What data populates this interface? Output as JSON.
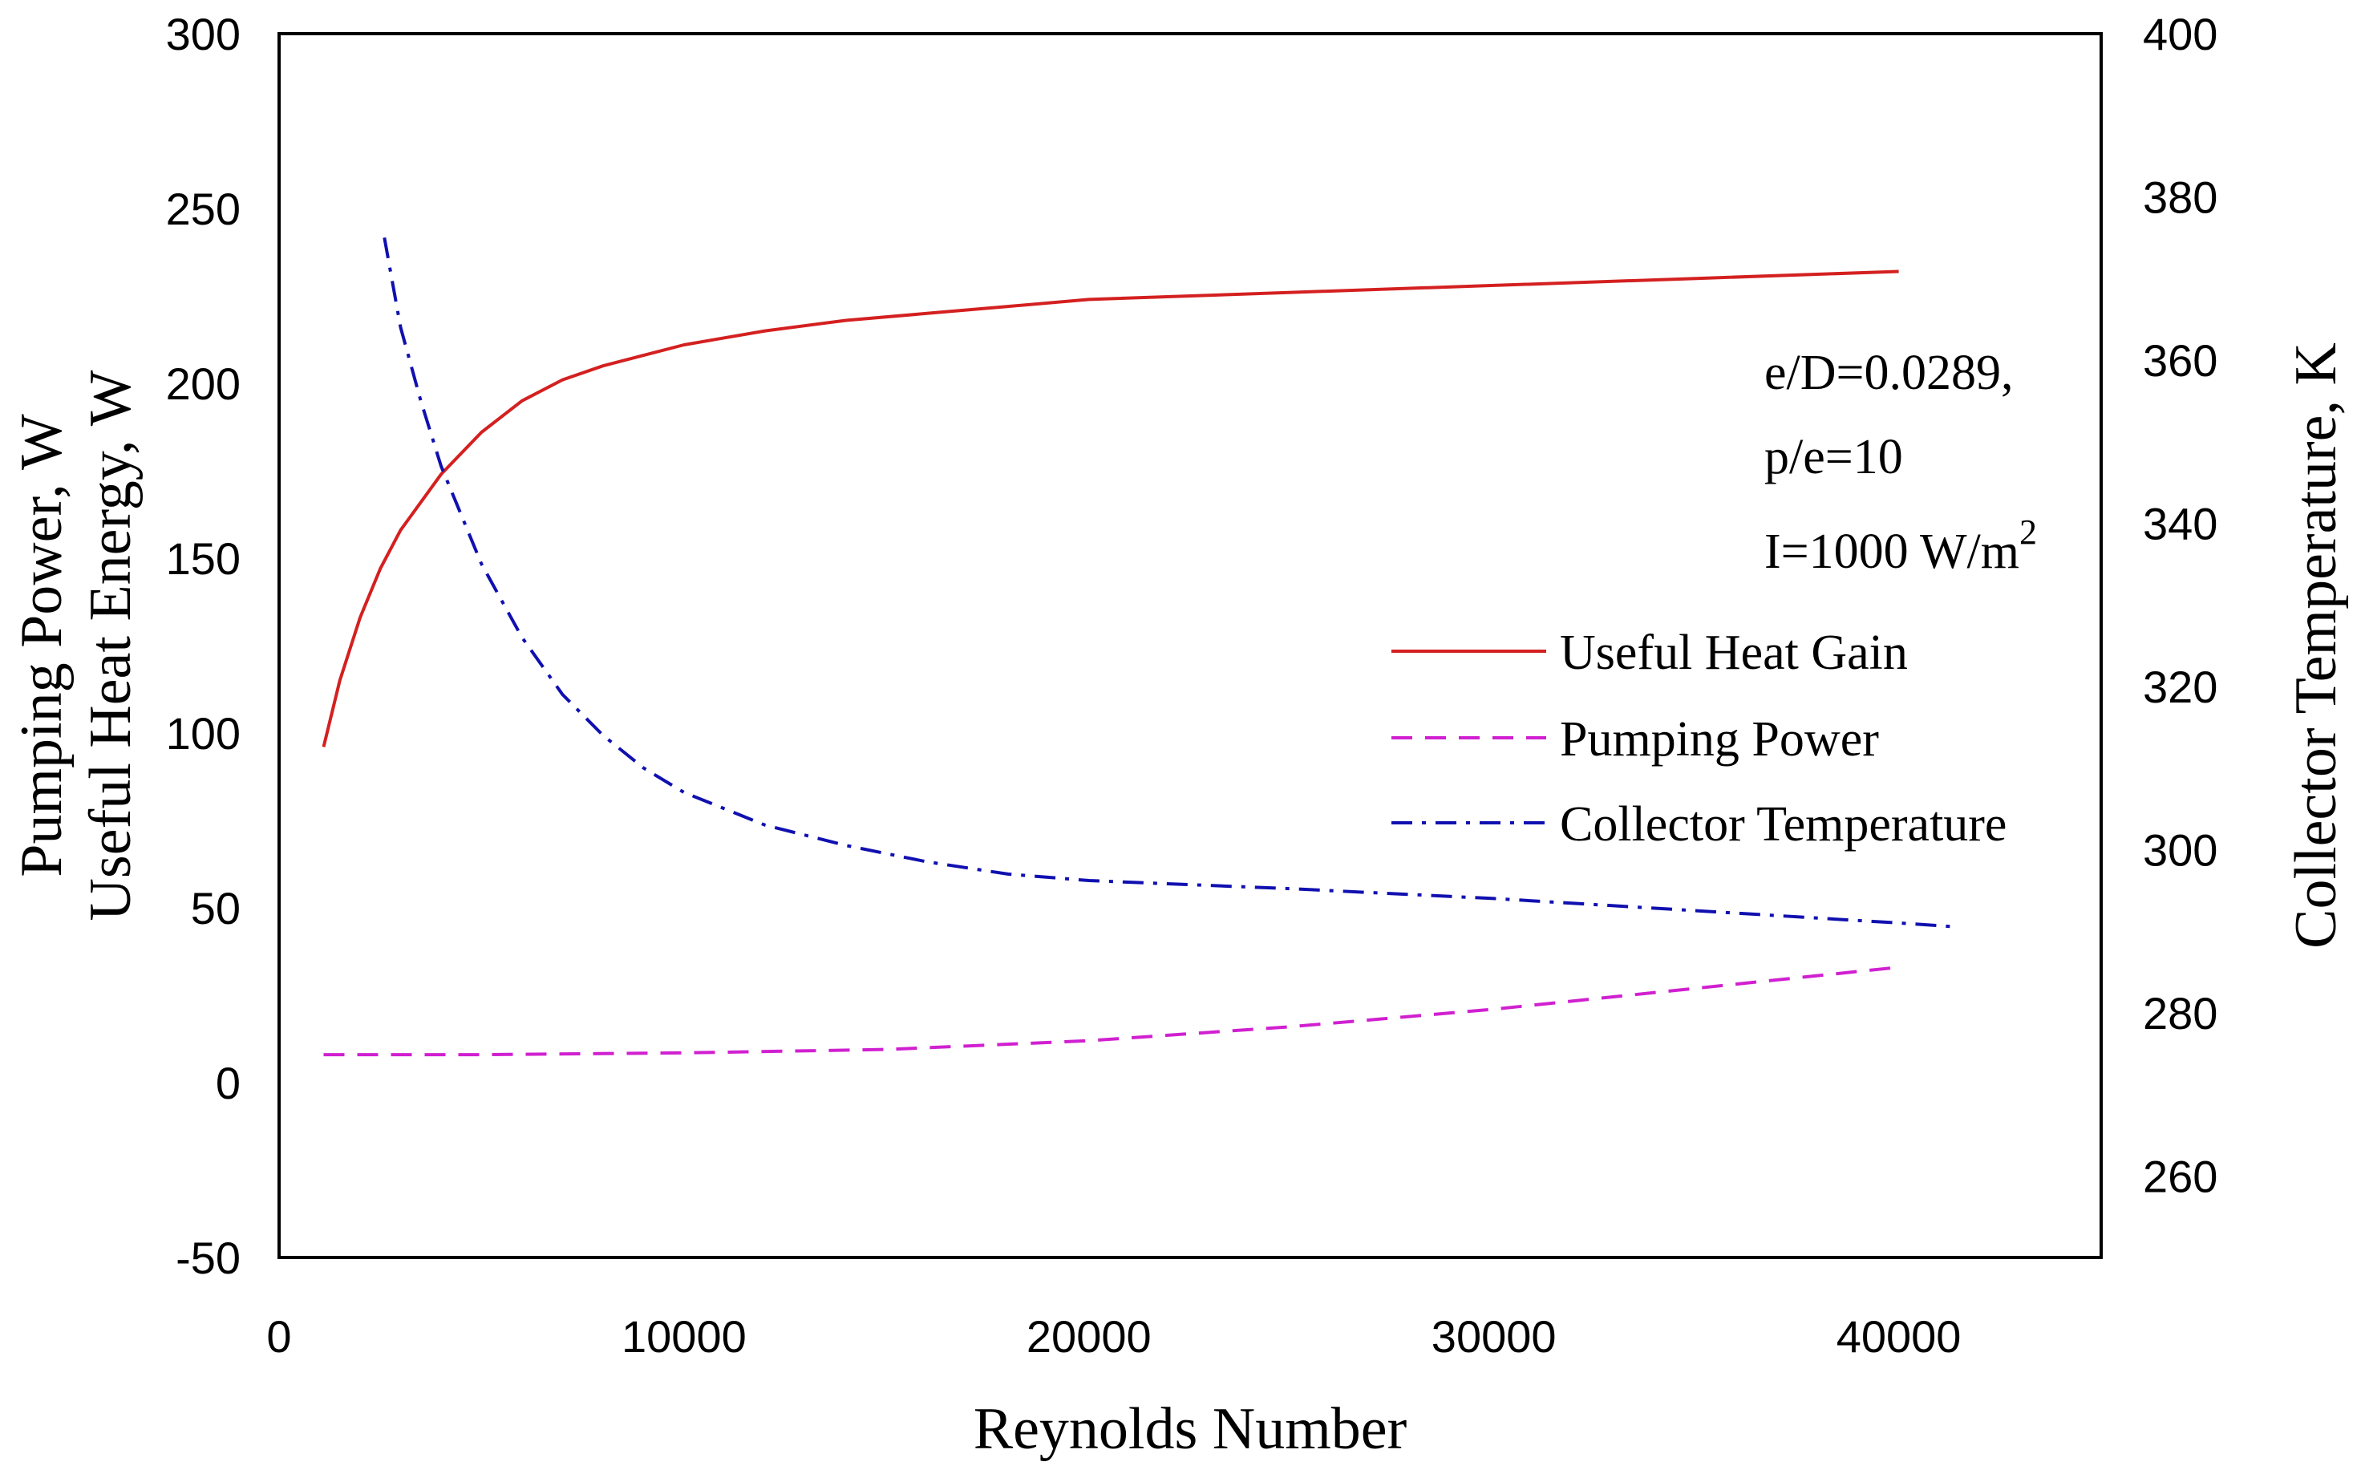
{
  "chart_data": {
    "type": "line",
    "title": "",
    "xlabel": "Reynolds Number",
    "ylabel_left_line1": "Pumping Power, W",
    "ylabel_left_line2": "Useful Heat Energy, W",
    "ylabel_right": "Collector Temperature, K",
    "xlim": [
      0,
      45000
    ],
    "ylim_left": [
      -50,
      300
    ],
    "ylim_right": [
      250,
      400
    ],
    "x_ticks": [
      "0",
      "10000",
      "20000",
      "30000",
      "40000"
    ],
    "x_tick_values": [
      0,
      10000,
      20000,
      30000,
      40000
    ],
    "y_left_ticks": [
      "-50",
      "0",
      "50",
      "100",
      "150",
      "200",
      "250",
      "300"
    ],
    "y_left_tick_values": [
      -50,
      0,
      50,
      100,
      150,
      200,
      250,
      300
    ],
    "y_right_ticks": [
      "260",
      "280",
      "300",
      "320",
      "340",
      "360",
      "380",
      "400"
    ],
    "y_right_tick_values": [
      260,
      280,
      300,
      320,
      340,
      360,
      380,
      400
    ],
    "annotations": [
      "e/D=0.0289,",
      "p/e=10",
      "I=1000 W/m",
      "2"
    ],
    "legend_position": "right",
    "series": [
      {
        "name": "Useful Heat Gain",
        "axis": "left",
        "color": "#d42020",
        "style": "solid",
        "x": [
          1100,
          1500,
          2000,
          2500,
          3000,
          4000,
          5000,
          6000,
          7000,
          8000,
          9000,
          10000,
          12000,
          14000,
          16000,
          18000,
          20000,
          25000,
          30000,
          35000,
          40000
        ],
        "y": [
          96,
          115,
          133,
          147,
          158,
          174,
          186,
          195,
          201,
          205,
          208,
          211,
          215,
          218,
          220,
          222,
          224,
          226,
          228,
          230,
          232
        ]
      },
      {
        "name": "Pumping Power",
        "axis": "left",
        "color": "#d020d0",
        "style": "dashed",
        "x": [
          1100,
          5000,
          10000,
          15000,
          20000,
          25000,
          30000,
          35000,
          40000
        ],
        "y": [
          8,
          8,
          8.5,
          9.5,
          12,
          16,
          21,
          27,
          33
        ]
      },
      {
        "name": "Collector Temperature",
        "axis": "right",
        "color": "#1010b0",
        "style": "dashdot",
        "x": [
          2600,
          3000,
          3500,
          4000,
          5000,
          6000,
          7000,
          8000,
          9000,
          10000,
          12000,
          14000,
          16000,
          18000,
          20000,
          22000,
          25000,
          30000,
          35000,
          40000,
          41500
        ],
        "y": [
          375,
          364,
          355,
          347,
          335,
          326,
          319,
          314,
          310,
          307,
          303,
          300.5,
          298.5,
          297,
          296.2,
          295.8,
          295.2,
          294,
          292.5,
          291,
          290.5
        ]
      }
    ]
  }
}
